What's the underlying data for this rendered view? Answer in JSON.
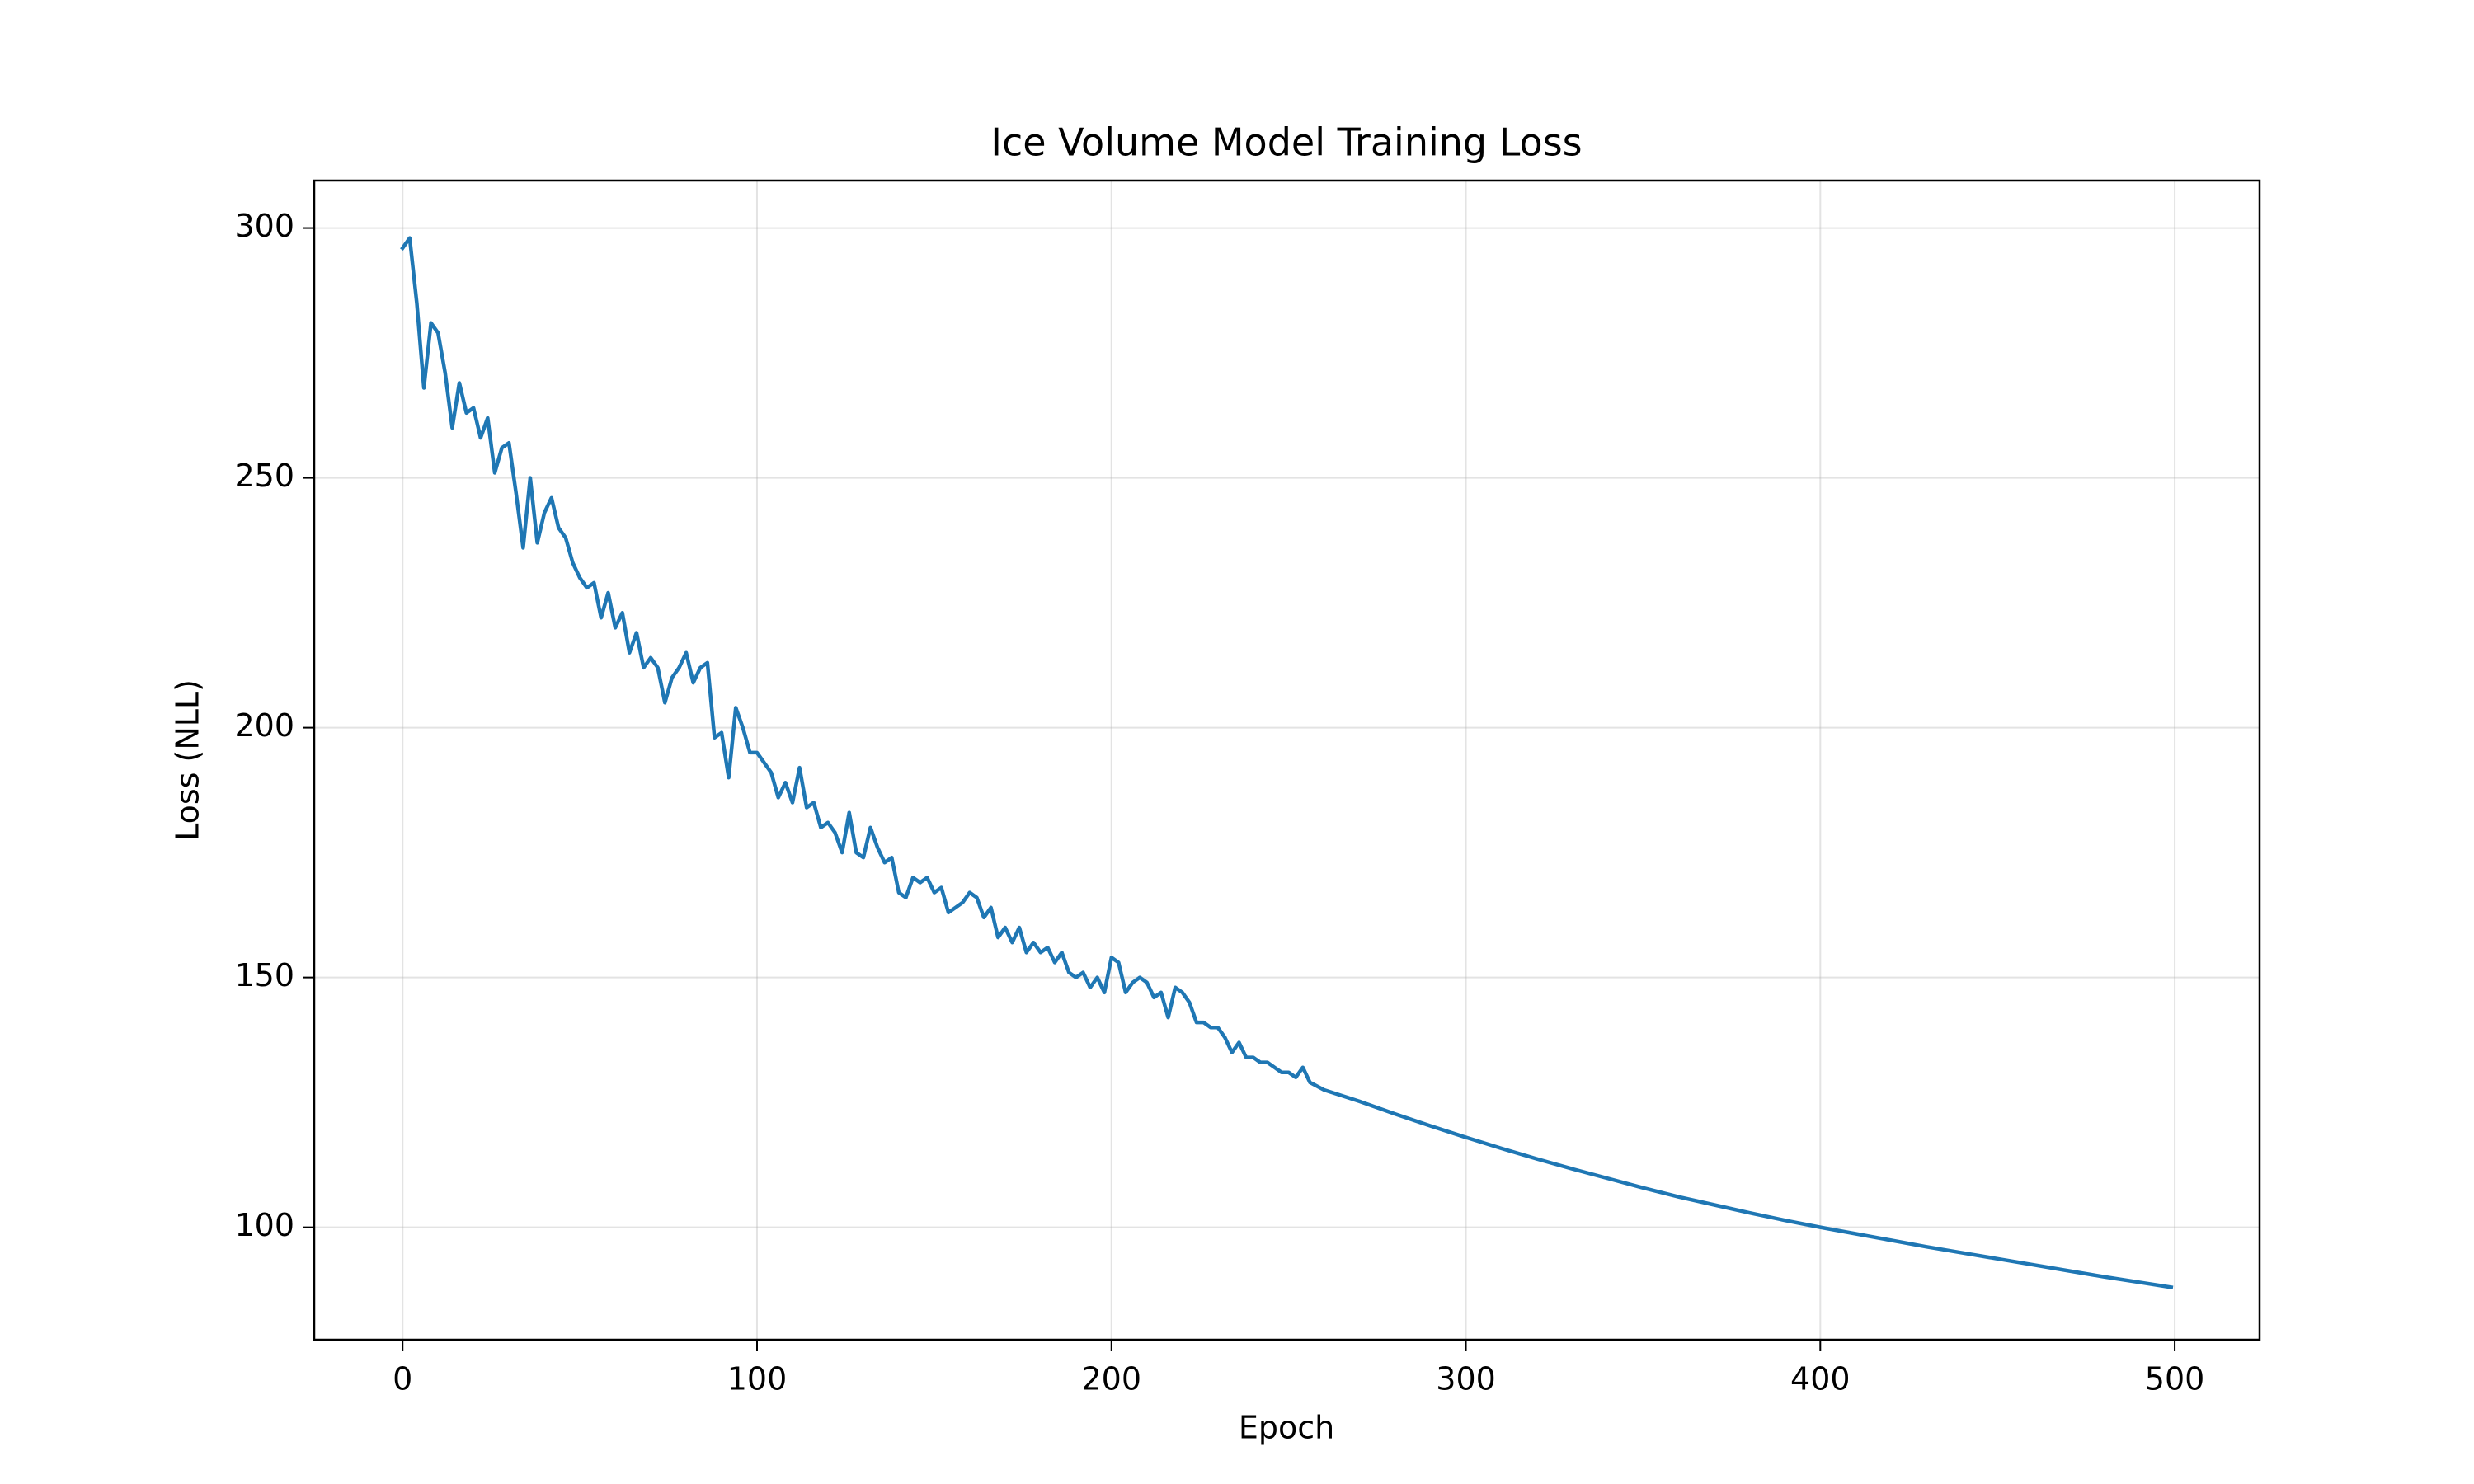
{
  "chart_data": {
    "type": "line",
    "title": "Ice Volume Model Training Loss",
    "x_label": "Epoch",
    "y_label": "Loss (NLL)",
    "x": [
      0,
      2,
      4,
      6,
      8,
      10,
      12,
      14,
      16,
      18,
      20,
      22,
      24,
      26,
      28,
      30,
      32,
      34,
      36,
      38,
      40,
      42,
      44,
      46,
      48,
      50,
      52,
      54,
      56,
      58,
      60,
      62,
      64,
      66,
      68,
      70,
      72,
      74,
      76,
      78,
      80,
      82,
      84,
      86,
      88,
      90,
      92,
      94,
      96,
      98,
      100,
      102,
      104,
      106,
      108,
      110,
      112,
      114,
      116,
      118,
      120,
      122,
      124,
      126,
      128,
      130,
      132,
      134,
      136,
      138,
      140,
      142,
      144,
      146,
      148,
      150,
      152,
      154,
      156,
      158,
      160,
      162,
      164,
      166,
      168,
      170,
      172,
      174,
      176,
      178,
      180,
      182,
      184,
      186,
      188,
      190,
      192,
      194,
      196,
      198,
      200,
      202,
      204,
      206,
      208,
      210,
      212,
      214,
      216,
      218,
      220,
      222,
      224,
      226,
      228,
      230,
      232,
      234,
      236,
      238,
      240,
      242,
      244,
      246,
      248,
      250,
      252,
      254,
      256,
      260,
      270,
      280,
      290,
      300,
      310,
      320,
      330,
      340,
      350,
      360,
      370,
      380,
      390,
      400,
      410,
      420,
      430,
      440,
      450,
      460,
      470,
      480,
      490,
      499
    ],
    "values": [
      296,
      298,
      285,
      268,
      281,
      279,
      271,
      260,
      269,
      263,
      264,
      258,
      262,
      251,
      256,
      257,
      247,
      236,
      250,
      237,
      243,
      246,
      240,
      238,
      233,
      230,
      228,
      229,
      222,
      227,
      220,
      223,
      215,
      219,
      212,
      214,
      212,
      205,
      210,
      212,
      215,
      209,
      212,
      213,
      198,
      199,
      190,
      204,
      200,
      195,
      195,
      193,
      191,
      186,
      189,
      185,
      192,
      184,
      185,
      180,
      181,
      179,
      175,
      183,
      175,
      174,
      180,
      176,
      173,
      174,
      167,
      166,
      170,
      169,
      170,
      167,
      168,
      163,
      164,
      165,
      167,
      166,
      162,
      164,
      158,
      160,
      157,
      160,
      155,
      157,
      155,
      156,
      153,
      155,
      151,
      150,
      151,
      148,
      150,
      147,
      154,
      153,
      147,
      149,
      150,
      149,
      146,
      147,
      142,
      148,
      147,
      145,
      141,
      141,
      140,
      140,
      138,
      135,
      137,
      134,
      134,
      133,
      133,
      132,
      131,
      131,
      130,
      132,
      129,
      127.5,
      125.2,
      122.7,
      120.3,
      118.0,
      115.8,
      113.7,
      111.7,
      109.8,
      107.9,
      106.1,
      104.5,
      102.9,
      101.4,
      100.0,
      98.7,
      97.4,
      96.1,
      94.9,
      93.7,
      92.5,
      91.3,
      90.1,
      89.0,
      88.0
    ],
    "color": "#1f77b4",
    "xlim": [
      -24.95,
      523.95
    ],
    "xticks": [
      0,
      100,
      200,
      300,
      400,
      500
    ],
    "ylim": [
      77.5,
      309.5
    ],
    "yticks": [
      100,
      150,
      200,
      250,
      300
    ],
    "grid": true
  }
}
